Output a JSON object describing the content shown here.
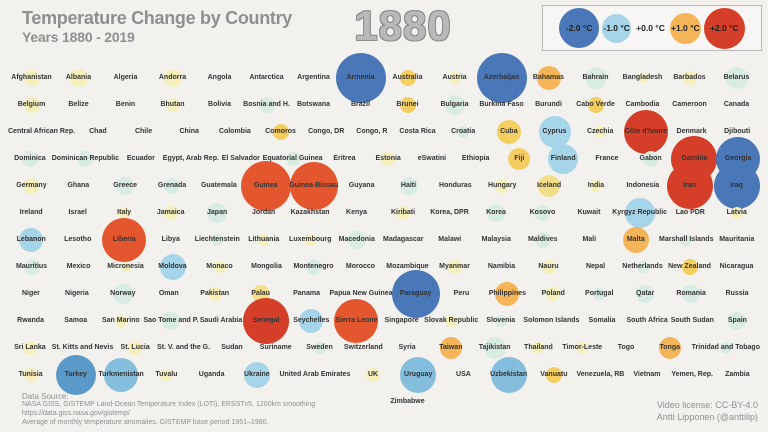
{
  "header": {
    "title": "Temperature Change by Country",
    "subtitle": "Years 1880 - 2019",
    "year": "1880"
  },
  "legend": {
    "items": [
      {
        "label": "-2.0 °C",
        "color": "deepblue",
        "size": 40
      },
      {
        "label": "-1.0 °C",
        "color": "lightblue",
        "size": 29
      },
      {
        "label": "+0.0 °C",
        "color": null,
        "size": 0
      },
      {
        "label": "+1.0 °C",
        "color": "orange",
        "size": 31
      },
      {
        "label": "+2.0 °C",
        "color": "red",
        "size": 41
      }
    ]
  },
  "palette": {
    "deepblue": "#4a77b7",
    "midblue": "#5b9ac8",
    "steelblue": "#85bedd",
    "lightblue": "#a6d4e8",
    "paleblue": "#cfe7ee",
    "paleteal": "#d9ece2",
    "paleyellow": "#f5f0bb",
    "lightyellow": "#f3df8a",
    "yellow": "#f5ce62",
    "orange": "#f3b557",
    "orangered": "#e4572e",
    "red": "#d53e28"
  },
  "chart_data": {
    "type": "heatmap",
    "title": "Temperature Change by Country",
    "subtitle": "Years 1880 - 2019",
    "year_shown": "1880",
    "unit": "°C temperature anomaly",
    "legend_values": [
      -2.0,
      -1.0,
      0.0,
      1.0,
      2.0
    ],
    "color_value_map": {
      "deepblue": -2.0,
      "midblue": -1.7,
      "steelblue": -1.3,
      "lightblue": -1.0,
      "paleblue": -0.5,
      "paleteal": -0.3,
      "paleyellow": 0.3,
      "lightyellow": 0.6,
      "yellow": 0.8,
      "orange": 1.0,
      "orangered": 1.7,
      "red": 2.0
    },
    "rows": [
      [
        {
          "n": "Afghanistan",
          "c": "paleyellow",
          "s": 16
        },
        {
          "n": "Albania",
          "c": "paleyellow",
          "s": 18
        },
        {
          "n": "Algeria",
          "c": null,
          "s": 0
        },
        {
          "n": "Andorra",
          "c": "paleyellow",
          "s": 18
        },
        {
          "n": "Angola",
          "c": null,
          "s": 0
        },
        {
          "n": "Antarctica",
          "c": null,
          "s": 0
        },
        {
          "n": "Argentina",
          "c": null,
          "s": 0
        },
        {
          "n": "Armenia",
          "c": "deepblue",
          "s": 50
        },
        {
          "n": "Australia",
          "c": "yellow",
          "s": 16
        },
        {
          "n": "Austria",
          "c": "paleyellow",
          "s": 12
        },
        {
          "n": "Azerbaijan",
          "c": "deepblue",
          "s": 50
        },
        {
          "n": "Bahamas",
          "c": "orange",
          "s": 24
        },
        {
          "n": "Bahrain",
          "c": "paleteal",
          "s": 22
        },
        {
          "n": "Bangladesh",
          "c": "paleyellow",
          "s": 10
        },
        {
          "n": "Barbados",
          "c": "paleyellow",
          "s": 14
        },
        {
          "n": "Belarus",
          "c": "paleteal",
          "s": 22
        }
      ],
      [
        {
          "n": "Belgium",
          "c": "paleyellow",
          "s": 16
        },
        {
          "n": "Belize",
          "c": null,
          "s": 0
        },
        {
          "n": "Benin",
          "c": null,
          "s": 0
        },
        {
          "n": "Bhutan",
          "c": "paleyellow",
          "s": 14
        },
        {
          "n": "Bolivia",
          "c": null,
          "s": 0
        },
        {
          "n": "Bosnia and H.",
          "c": "paleteal",
          "s": 16
        },
        {
          "n": "Botswana",
          "c": null,
          "s": 0
        },
        {
          "n": "Brazil",
          "c": null,
          "s": 0
        },
        {
          "n": "Brunei",
          "c": "yellow",
          "s": 16
        },
        {
          "n": "Bulgaria",
          "c": "paleteal",
          "s": 20
        },
        {
          "n": "Burkina Faso",
          "c": null,
          "s": 0
        },
        {
          "n": "Burundi",
          "c": null,
          "s": 0
        },
        {
          "n": "Cabo Verde",
          "c": "yellow",
          "s": 16
        },
        {
          "n": "Cambodia",
          "c": null,
          "s": 0
        },
        {
          "n": "Cameroon",
          "c": null,
          "s": 0
        },
        {
          "n": "Canada",
          "c": null,
          "s": 0
        }
      ],
      [
        {
          "n": "Central African Rep.",
          "c": null,
          "s": 0
        },
        {
          "n": "Chad",
          "c": null,
          "s": 0
        },
        {
          "n": "Chile",
          "c": null,
          "s": 0
        },
        {
          "n": "China",
          "c": null,
          "s": 0
        },
        {
          "n": "Colombia",
          "c": null,
          "s": 0
        },
        {
          "n": "Comoros",
          "c": "yellow",
          "s": 16
        },
        {
          "n": "Congo, DR",
          "c": null,
          "s": 0
        },
        {
          "n": "Congo, R",
          "c": null,
          "s": 0
        },
        {
          "n": "Costa Rica",
          "c": null,
          "s": 0
        },
        {
          "n": "Croatia",
          "c": "paleteal",
          "s": 12
        },
        {
          "n": "Cuba",
          "c": "yellow",
          "s": 24
        },
        {
          "n": "Cyprus",
          "c": "lightblue",
          "s": 32
        },
        {
          "n": "Czechia",
          "c": "paleyellow",
          "s": 12
        },
        {
          "n": "Côte d'Ivoire",
          "c": "red",
          "s": 44
        },
        {
          "n": "Denmark",
          "c": null,
          "s": 0
        },
        {
          "n": "Djibouti",
          "c": null,
          "s": 0
        }
      ],
      [
        {
          "n": "Dominica",
          "c": "paleteal",
          "s": 16
        },
        {
          "n": "Dominican Republic",
          "c": "paleteal",
          "s": 16
        },
        {
          "n": "Ecuador",
          "c": null,
          "s": 0
        },
        {
          "n": "Egypt, Arab Rep.",
          "c": null,
          "s": 0
        },
        {
          "n": "El Salvador",
          "c": null,
          "s": 0
        },
        {
          "n": "Equatorial Guinea",
          "c": "paleteal",
          "s": 14
        },
        {
          "n": "Eritrea",
          "c": null,
          "s": 0
        },
        {
          "n": "Estonia",
          "c": "paleyellow",
          "s": 14
        },
        {
          "n": "eSwatini",
          "c": null,
          "s": 0
        },
        {
          "n": "Ethiopia",
          "c": null,
          "s": 0
        },
        {
          "n": "Fiji",
          "c": "yellow",
          "s": 22
        },
        {
          "n": "Finland",
          "c": "lightblue",
          "s": 30
        },
        {
          "n": "France",
          "c": null,
          "s": 0
        },
        {
          "n": "Gabon",
          "c": "paleteal",
          "s": 16
        },
        {
          "n": "Gambia",
          "c": "red",
          "s": 46
        },
        {
          "n": "Georgia",
          "c": "deepblue",
          "s": 44
        }
      ],
      [
        {
          "n": "Germany",
          "c": "paleyellow",
          "s": 16
        },
        {
          "n": "Ghana",
          "c": null,
          "s": 0
        },
        {
          "n": "Greece",
          "c": "paleteal",
          "s": 18
        },
        {
          "n": "Grenada",
          "c": "paleteal",
          "s": 16
        },
        {
          "n": "Guatemala",
          "c": null,
          "s": 0
        },
        {
          "n": "Guinea",
          "c": "orangered",
          "s": 50
        },
        {
          "n": "Guinea-Bissau",
          "c": "orangered",
          "s": 48
        },
        {
          "n": "Guyana",
          "c": null,
          "s": 0
        },
        {
          "n": "Haiti",
          "c": "paleteal",
          "s": 18
        },
        {
          "n": "Honduras",
          "c": null,
          "s": 0
        },
        {
          "n": "Hungary",
          "c": "paleyellow",
          "s": 14
        },
        {
          "n": "Iceland",
          "c": "lightyellow",
          "s": 22
        },
        {
          "n": "India",
          "c": "paleyellow",
          "s": 12
        },
        {
          "n": "Indonesia",
          "c": null,
          "s": 0
        },
        {
          "n": "Iran",
          "c": "red",
          "s": 46
        },
        {
          "n": "Iraq",
          "c": "deepblue",
          "s": 46
        }
      ],
      [
        {
          "n": "Ireland",
          "c": null,
          "s": 0
        },
        {
          "n": "Israel",
          "c": null,
          "s": 0
        },
        {
          "n": "Italy",
          "c": "paleyellow",
          "s": 12
        },
        {
          "n": "Jamaica",
          "c": "paleyellow",
          "s": 14
        },
        {
          "n": "Japan",
          "c": "paleteal",
          "s": 20
        },
        {
          "n": "Jordan",
          "c": null,
          "s": 0
        },
        {
          "n": "Kazakhstan",
          "c": null,
          "s": 0
        },
        {
          "n": "Kenya",
          "c": null,
          "s": 0
        },
        {
          "n": "Kiribati",
          "c": "paleyellow",
          "s": 14
        },
        {
          "n": "Korea, DPR",
          "c": null,
          "s": 0
        },
        {
          "n": "Korea",
          "c": "paleteal",
          "s": 18
        },
        {
          "n": "Kosovo",
          "c": "paleteal",
          "s": 16
        },
        {
          "n": "Kuwait",
          "c": null,
          "s": 0
        },
        {
          "n": "Kyrgyz Republic",
          "c": "lightblue",
          "s": 30
        },
        {
          "n": "Lao PDR",
          "c": null,
          "s": 0
        },
        {
          "n": "Latvia",
          "c": "paleyellow",
          "s": 12
        }
      ],
      [
        {
          "n": "Lebanon",
          "c": "lightblue",
          "s": 24
        },
        {
          "n": "Lesotho",
          "c": null,
          "s": 0
        },
        {
          "n": "Liberia",
          "c": "orangered",
          "s": 44
        },
        {
          "n": "Libya",
          "c": null,
          "s": 0
        },
        {
          "n": "Liechtenstein",
          "c": "paleteal",
          "s": 12
        },
        {
          "n": "Lithuania",
          "c": "paleyellow",
          "s": 12
        },
        {
          "n": "Luxembourg",
          "c": "paleyellow",
          "s": 12
        },
        {
          "n": "Macedonia",
          "c": "paleteal",
          "s": 18
        },
        {
          "n": "Madagascar",
          "c": null,
          "s": 0
        },
        {
          "n": "Malawi",
          "c": null,
          "s": 0
        },
        {
          "n": "Malaysia",
          "c": null,
          "s": 0
        },
        {
          "n": "Maldives",
          "c": "paleteal",
          "s": 16
        },
        {
          "n": "Mali",
          "c": null,
          "s": 0
        },
        {
          "n": "Malta",
          "c": "orange",
          "s": 26
        },
        {
          "n": "Marshall Islands",
          "c": "paleteal",
          "s": 12
        },
        {
          "n": "Mauritania",
          "c": null,
          "s": 0
        }
      ],
      [
        {
          "n": "Mauritius",
          "c": "paleteal",
          "s": 16
        },
        {
          "n": "Mexico",
          "c": null,
          "s": 0
        },
        {
          "n": "Micronesia",
          "c": "paleyellow",
          "s": 10
        },
        {
          "n": "Moldova",
          "c": "lightblue",
          "s": 26
        },
        {
          "n": "Monaco",
          "c": "paleyellow",
          "s": 12
        },
        {
          "n": "Mongolia",
          "c": null,
          "s": 0
        },
        {
          "n": "Montenegro",
          "c": "paleteal",
          "s": 16
        },
        {
          "n": "Morocco",
          "c": null,
          "s": 0
        },
        {
          "n": "Mozambique",
          "c": null,
          "s": 0
        },
        {
          "n": "Myanmar",
          "c": "paleyellow",
          "s": 14
        },
        {
          "n": "Namibia",
          "c": null,
          "s": 0
        },
        {
          "n": "Nauru",
          "c": "paleyellow",
          "s": 14
        },
        {
          "n": "Nepal",
          "c": null,
          "s": 0
        },
        {
          "n": "Netherlands",
          "c": "paleteal",
          "s": 12
        },
        {
          "n": "New Zealand",
          "c": "yellow",
          "s": 16
        },
        {
          "n": "Nicaragua",
          "c": null,
          "s": 0
        }
      ],
      [
        {
          "n": "Niger",
          "c": null,
          "s": 0
        },
        {
          "n": "Nigeria",
          "c": null,
          "s": 0
        },
        {
          "n": "Norway",
          "c": "paleteal",
          "s": 20
        },
        {
          "n": "Oman",
          "c": null,
          "s": 0
        },
        {
          "n": "Pakistan",
          "c": "paleyellow",
          "s": 14
        },
        {
          "n": "Palau",
          "c": "lightyellow",
          "s": 18
        },
        {
          "n": "Panama",
          "c": null,
          "s": 0
        },
        {
          "n": "Papua New Guinea",
          "c": null,
          "s": 0
        },
        {
          "n": "Paraguay",
          "c": "deepblue",
          "s": 48
        },
        {
          "n": "Peru",
          "c": null,
          "s": 0
        },
        {
          "n": "Philippines",
          "c": "orange",
          "s": 24
        },
        {
          "n": "Poland",
          "c": "paleyellow",
          "s": 14
        },
        {
          "n": "Portugal",
          "c": "paleteal",
          "s": 12
        },
        {
          "n": "Qatar",
          "c": "paleteal",
          "s": 18
        },
        {
          "n": "Romania",
          "c": "paleteal",
          "s": 18
        },
        {
          "n": "Russia",
          "c": null,
          "s": 0
        }
      ],
      [
        {
          "n": "Rwanda",
          "c": null,
          "s": 0
        },
        {
          "n": "Samoa",
          "c": null,
          "s": 0
        },
        {
          "n": "San Marino",
          "c": "paleyellow",
          "s": 12
        },
        {
          "n": "Sao Tome and P.",
          "c": "paleteal",
          "s": 18
        },
        {
          "n": "Saudi Arabia",
          "c": null,
          "s": 0
        },
        {
          "n": "Senegal",
          "c": "red",
          "s": 46
        },
        {
          "n": "Seychelles",
          "c": "lightblue",
          "s": 24
        },
        {
          "n": "Sierra Leone",
          "c": "orangered",
          "s": 44
        },
        {
          "n": "Singapore",
          "c": null,
          "s": 0
        },
        {
          "n": "Slovak Republic",
          "c": "paleyellow",
          "s": 12
        },
        {
          "n": "Slovenia",
          "c": "paleteal",
          "s": 12
        },
        {
          "n": "Solomon Islands",
          "c": null,
          "s": 0
        },
        {
          "n": "Somalia",
          "c": null,
          "s": 0
        },
        {
          "n": "South Africa",
          "c": null,
          "s": 0
        },
        {
          "n": "South Sudan",
          "c": null,
          "s": 0
        },
        {
          "n": "Spain",
          "c": "paleteal",
          "s": 18
        }
      ],
      [
        {
          "n": "Sri Lanka",
          "c": "paleyellow",
          "s": 14
        },
        {
          "n": "St. Kitts and Nevis",
          "c": null,
          "s": 0
        },
        {
          "n": "St. Lucia",
          "c": "paleyellow",
          "s": 14
        },
        {
          "n": "St. V. and the G.",
          "c": null,
          "s": 0
        },
        {
          "n": "Sudan",
          "c": null,
          "s": 0
        },
        {
          "n": "Suriname",
          "c": null,
          "s": 0
        },
        {
          "n": "Sweden",
          "c": "paleteal",
          "s": 12
        },
        {
          "n": "Switzerland",
          "c": null,
          "s": 0
        },
        {
          "n": "Syria",
          "c": null,
          "s": 0
        },
        {
          "n": "Taiwan",
          "c": "orange",
          "s": 22
        },
        {
          "n": "Tajikistan",
          "c": "paleteal",
          "s": 22
        },
        {
          "n": "Thailand",
          "c": "paleyellow",
          "s": 12
        },
        {
          "n": "Timor-Leste",
          "c": "paleyellow",
          "s": 12
        },
        {
          "n": "Togo",
          "c": null,
          "s": 0
        },
        {
          "n": "Tonga",
          "c": "orange",
          "s": 22
        },
        {
          "n": "Trinidad and Tobago",
          "c": "paleteal",
          "s": 12
        }
      ],
      [
        {
          "n": "Tunisia",
          "c": "paleyellow",
          "s": 14
        },
        {
          "n": "Turkey",
          "c": "midblue",
          "s": 40
        },
        {
          "n": "Turkmenistan",
          "c": "steelblue",
          "s": 34
        },
        {
          "n": "Tuvalu",
          "c": "paleyellow",
          "s": 12
        },
        {
          "n": "Uganda",
          "c": null,
          "s": 0
        },
        {
          "n": "Ukraine",
          "c": "lightblue",
          "s": 26
        },
        {
          "n": "United Arab Emirates",
          "c": null,
          "s": 0
        },
        {
          "n": "UK",
          "c": "paleyellow",
          "s": 14
        },
        {
          "n": "Uruguay",
          "c": "steelblue",
          "s": 36
        },
        {
          "n": "USA",
          "c": null,
          "s": 0
        },
        {
          "n": "Uzbekistan",
          "c": "steelblue",
          "s": 36
        },
        {
          "n": "Vanuatu",
          "c": "yellow",
          "s": 16
        },
        {
          "n": "Venezuela, RB",
          "c": null,
          "s": 0
        },
        {
          "n": "Vietnam",
          "c": null,
          "s": 0
        },
        {
          "n": "Yemen, Rep.",
          "c": null,
          "s": 0
        },
        {
          "n": "Zambia",
          "c": null,
          "s": 0
        }
      ],
      [
        null,
        null,
        null,
        null,
        null,
        null,
        null,
        null,
        {
          "n": "Zimbabwe",
          "c": null,
          "s": 0
        },
        null,
        null,
        null,
        null,
        null,
        null,
        null
      ]
    ]
  },
  "footer": {
    "source_label": "Data Source:",
    "source_line1": "NASA GISS, GISTEMP Land-Ocean Temperature Index (LOTI), ERSSTv5, 1200km smoothing",
    "source_line2": "https://data.giss.nasa.gov/gistemp/",
    "source_line3": "Average of monthly temperature anomalies. GISTEMP base period 1951–1980.",
    "license_line1": "Video license: CC-BY-4.0",
    "license_line2": "Antti Lipponen (@anttilip)"
  }
}
